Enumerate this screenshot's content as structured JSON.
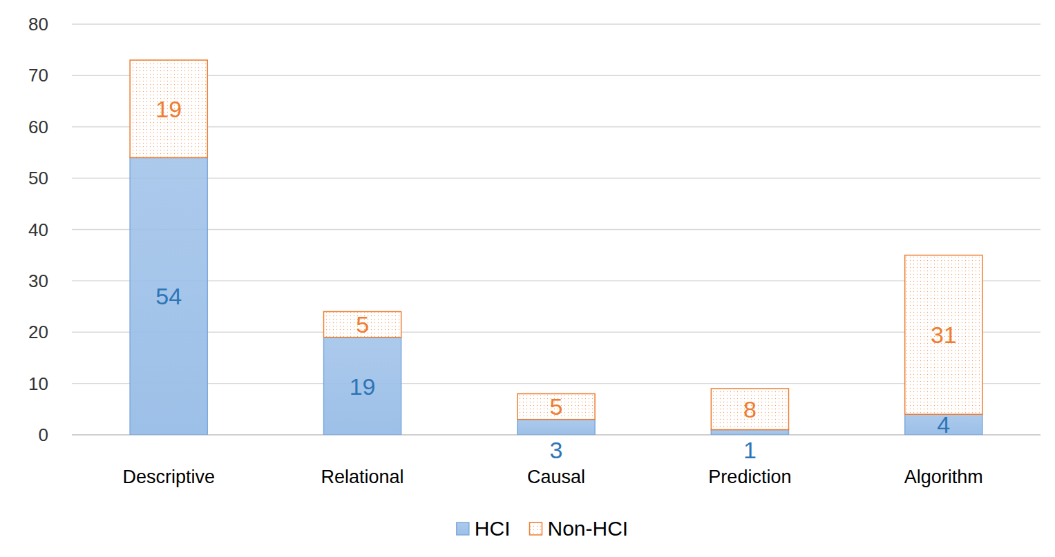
{
  "chart_data": {
    "type": "bar",
    "stacked": true,
    "data_labels": true,
    "grid": true,
    "legend": "bottom",
    "categories": [
      "Descriptive",
      "Relational",
      "Causal",
      "Prediction",
      "Algorithm"
    ],
    "series": [
      {
        "name": "HCI",
        "color": "#9dc0e8",
        "values": [
          54,
          19,
          3,
          1,
          4
        ]
      },
      {
        "name": "Non-HCI",
        "color": "#ed7d31",
        "values": [
          19,
          5,
          5,
          8,
          31
        ]
      }
    ],
    "ylim": [
      0,
      80
    ],
    "yticks": [
      0,
      10,
      20,
      30,
      40,
      50,
      60,
      70,
      80
    ]
  }
}
